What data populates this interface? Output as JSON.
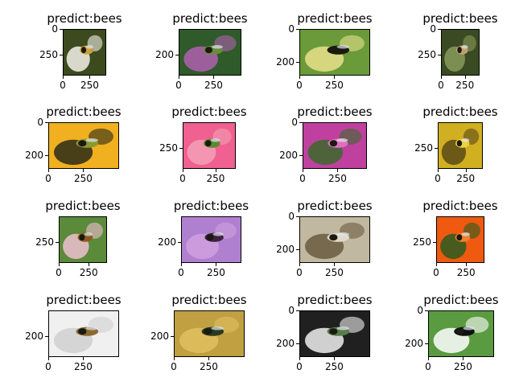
{
  "panels": [
    {
      "title": "predict:bees",
      "yticks": [
        "0",
        "250"
      ],
      "xticks": [
        "0",
        "250"
      ],
      "colors": [
        "#3c4a1e",
        "#f4f2ea",
        "#c9a040"
      ]
    },
    {
      "title": "predict:bees",
      "yticks": [
        "200"
      ],
      "xticks": [
        "0",
        "250"
      ],
      "colors": [
        "#2f5a2a",
        "#b060b0",
        "#6a8a40"
      ]
    },
    {
      "title": "predict:bees",
      "yticks": [
        "0",
        "200"
      ],
      "xticks": [
        "0",
        "250"
      ],
      "colors": [
        "#6a9a3a",
        "#e8e08a",
        "#1a1a10"
      ]
    },
    {
      "title": "predict:bees",
      "yticks": [
        "0",
        "250"
      ],
      "xticks": [
        "0",
        "250"
      ],
      "colors": [
        "#3a4a22",
        "#8a9a5a",
        "#c0a070"
      ]
    },
    {
      "title": "predict:bees",
      "yticks": [
        "0",
        "200"
      ],
      "xticks": [
        "0",
        "250"
      ],
      "colors": [
        "#f0b020",
        "#2a2a18",
        "#8a9a30"
      ]
    },
    {
      "title": "predict:bees",
      "yticks": [
        "250"
      ],
      "xticks": [
        "0",
        "250"
      ],
      "colors": [
        "#f06090",
        "#f4a0b8",
        "#5a8a30"
      ]
    },
    {
      "title": "predict:bees",
      "yticks": [
        "0",
        "200"
      ],
      "xticks": [
        "0",
        "250"
      ],
      "colors": [
        "#c040a0",
        "#3a6a2a",
        "#e070c0"
      ]
    },
    {
      "title": "predict:bees",
      "yticks": [
        "250"
      ],
      "xticks": [
        "0",
        "250"
      ],
      "colors": [
        "#d0b020",
        "#5a4a18",
        "#f0d040"
      ]
    },
    {
      "title": "predict:bees",
      "yticks": [
        "250"
      ],
      "xticks": [
        "0",
        "250"
      ],
      "colors": [
        "#5a8a3a",
        "#f0c0d0",
        "#8a5a20"
      ]
    },
    {
      "title": "predict:bees",
      "yticks": [
        "200"
      ],
      "xticks": [
        "0",
        "250"
      ],
      "colors": [
        "#b080d0",
        "#d0a0e0",
        "#402040"
      ]
    },
    {
      "title": "predict:bees",
      "yticks": [
        "0",
        "200"
      ],
      "xticks": [
        "0",
        "250"
      ],
      "colors": [
        "#c0b8a0",
        "#6a5a40",
        "#e0d8c8"
      ]
    },
    {
      "title": "predict:bees",
      "yticks": [
        "250"
      ],
      "xticks": [
        "0",
        "250"
      ],
      "colors": [
        "#f05a10",
        "#2a5a20",
        "#f08030"
      ]
    },
    {
      "title": "predict:bees",
      "yticks": [
        "200"
      ],
      "xticks": [
        "0",
        "250"
      ],
      "colors": [
        "#f0f0f0",
        "#d0d0d0",
        "#8a6a30"
      ]
    },
    {
      "title": "predict:bees",
      "yticks": [
        "200"
      ],
      "xticks": [
        "0",
        "250"
      ],
      "colors": [
        "#c0a040",
        "#e0c060",
        "#2a3a20"
      ]
    },
    {
      "title": "predict:bees",
      "yticks": [
        "0",
        "200"
      ],
      "xticks": [
        "0",
        "250"
      ],
      "colors": [
        "#202020",
        "#f0f0f0",
        "#5a7a4a"
      ]
    },
    {
      "title": "predict:bees",
      "yticks": [
        "0",
        "200"
      ],
      "xticks": [
        "0",
        "250"
      ],
      "colors": [
        "#5a9a40",
        "#ffffff",
        "#101010"
      ]
    }
  ]
}
